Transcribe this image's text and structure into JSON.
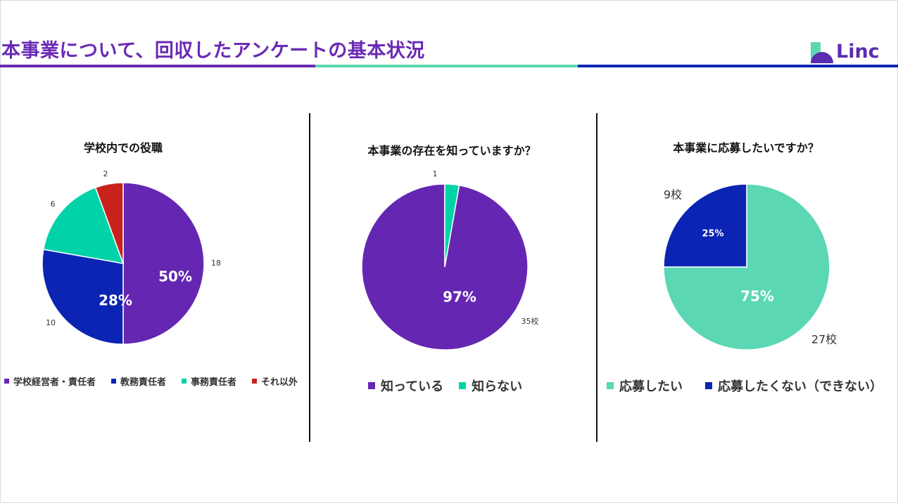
{
  "slide": {
    "title": "本事業について、回収したアンケートの基本状況",
    "logo_text": "Linc",
    "colors": {
      "purple": "#6527b2",
      "blue": "#0b24b3",
      "teal": "#00d3a8",
      "red": "#c9221c",
      "mint": "#5bd8b3",
      "underline_purple": "#6a2ab4",
      "underline_teal": "#5bd8b3",
      "underline_blue": "#0b24b3"
    }
  },
  "chart_data": [
    {
      "type": "pie",
      "title": "学校内での役職",
      "series": [
        {
          "name": "学校経営者・責任者",
          "value": 18,
          "pct_label": "50%",
          "count_label": "18",
          "color": "#6527b2"
        },
        {
          "name": "教務責任者",
          "value": 10,
          "pct_label": "28%",
          "count_label": "10",
          "color": "#0b24b3"
        },
        {
          "name": "事務責任者",
          "value": 6,
          "pct_label": "",
          "count_label": "6",
          "color": "#00d3a8"
        },
        {
          "name": "それ以外",
          "value": 2,
          "pct_label": "",
          "count_label": "2",
          "color": "#c9221c"
        }
      ]
    },
    {
      "type": "pie",
      "title": "本事業の存在を知っていますか？",
      "series": [
        {
          "name": "知っている",
          "value": 35,
          "pct_label": "97%",
          "count_label": "35校",
          "color": "#6527b2"
        },
        {
          "name": "知らない",
          "value": 1,
          "pct_label": "",
          "count_label": "1",
          "color": "#00d3a8"
        }
      ]
    },
    {
      "type": "pie",
      "title": "本事業に応募したいですか？",
      "series": [
        {
          "name": "応募したい",
          "value": 27,
          "pct_label": "75%",
          "count_label": "27校",
          "color": "#5bd8b3"
        },
        {
          "name": "応募したくない（できない）",
          "value": 9,
          "pct_label": "25%",
          "count_label": "9校",
          "color": "#0b24b3"
        }
      ]
    }
  ]
}
